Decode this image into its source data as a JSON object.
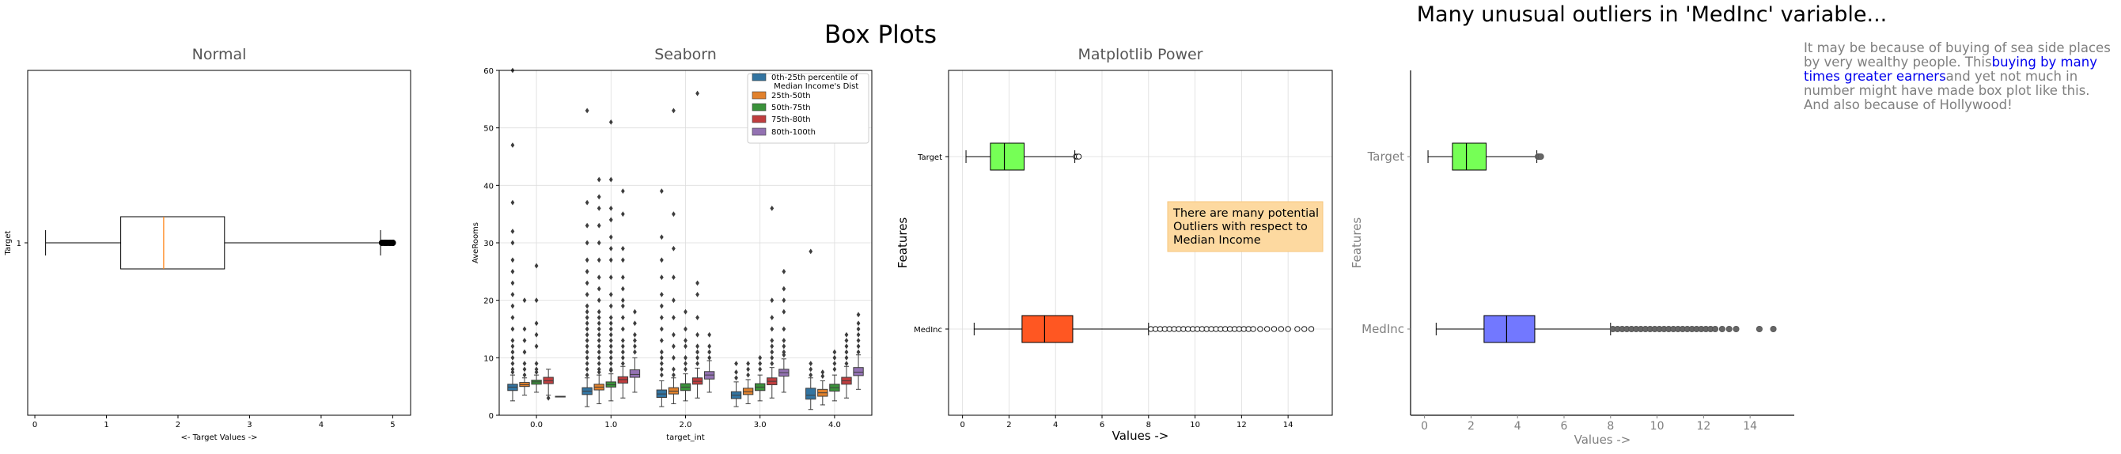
{
  "figure": {
    "suptitle": "Box Plots",
    "right_title": "Many unusual outliers in 'MedInc' variable...",
    "note": {
      "before": "It may be because of buying of sea side places by very wealthy people. This",
      "highlight": "buying by many times greater earners",
      "after": "and yet not much in number might have made box plot like this. And also because of Hollywood!"
    }
  },
  "chart_data": [
    {
      "type": "box",
      "title": "Normal",
      "orientation": "horizontal",
      "xlabel": "<-  Target Values  ->",
      "ylabel": "Target",
      "categories": [
        "1"
      ],
      "xlim": [
        -0.1,
        5.25
      ],
      "xticks": [
        0,
        1,
        2,
        3,
        4,
        5
      ],
      "boxes": [
        {
          "label": "1",
          "whislo": 0.15,
          "q1": 1.2,
          "med": 1.8,
          "q3": 2.65,
          "whishi": 4.83,
          "fliers": [
            4.85,
            4.88,
            4.9,
            4.92,
            4.95,
            4.97,
            5.0,
            5.0,
            5.0
          ]
        }
      ],
      "colors": {
        "box": "#000000",
        "median": "#ff7f0e",
        "face": "#ffffff"
      }
    },
    {
      "type": "box",
      "title": "Seaborn",
      "orientation": "vertical",
      "xlabel": "target_int",
      "ylabel": "AveRooms",
      "categories": [
        "0.0",
        "1.0",
        "2.0",
        "3.0",
        "4.0"
      ],
      "ylim": [
        0,
        60
      ],
      "yticks": [
        0,
        10,
        20,
        30,
        40,
        50,
        60
      ],
      "grid": true,
      "legend": {
        "position": "top-right",
        "entries": [
          "0th-25th percentile of\nMedian Income's Dist",
          "25th-50th",
          "50th-75th",
          "75th-80th",
          "80th-100th"
        ]
      },
      "series_colors": [
        "#3274a1",
        "#e1812c",
        "#3a923a",
        "#c03d3e",
        "#9372b2"
      ],
      "groups": [
        {
          "category": "0.0",
          "boxes": [
            {
              "whislo": 2.5,
              "q1": 4.3,
              "med": 4.9,
              "q3": 5.4,
              "whishi": 7.0,
              "fliers": [
                7.5,
                8,
                9,
                10,
                11,
                12,
                13,
                15,
                17,
                19,
                21,
                23,
                25,
                27,
                30,
                32,
                37,
                47,
                60
              ]
            },
            {
              "whislo": 3.5,
              "q1": 5.0,
              "med": 5.3,
              "q3": 5.7,
              "whishi": 6.5,
              "fliers": [
                7,
                8,
                9,
                11,
                13,
                15,
                20
              ]
            },
            {
              "whislo": 4.0,
              "q1": 5.4,
              "med": 5.8,
              "q3": 6.1,
              "whishi": 7.0,
              "fliers": [
                7.5,
                8,
                9,
                12,
                14,
                16,
                20,
                26
              ]
            },
            {
              "whislo": 3.5,
              "q1": 5.5,
              "med": 6.0,
              "q3": 6.6,
              "whishi": 8.0,
              "fliers": [
                3.0
              ]
            },
            {
              "whislo": 3.3,
              "q1": 3.3,
              "med": 3.3,
              "q3": 3.3,
              "whishi": 3.3,
              "fliers": []
            }
          ]
        },
        {
          "category": "1.0",
          "boxes": [
            {
              "whislo": 1.5,
              "q1": 3.6,
              "med": 4.2,
              "q3": 4.8,
              "whishi": 6.5,
              "fliers": [
                7,
                8,
                9,
                10,
                11,
                12,
                13,
                14,
                15,
                16,
                17,
                18,
                19,
                21,
                23,
                25,
                27,
                30,
                33,
                37,
                53
              ]
            },
            {
              "whislo": 2.0,
              "q1": 4.4,
              "med": 4.9,
              "q3": 5.4,
              "whishi": 7.0,
              "fliers": [
                7.5,
                8,
                9,
                10,
                11,
                12,
                13,
                14,
                15,
                16,
                17,
                18,
                20,
                22,
                24,
                27,
                30,
                33,
                36,
                38,
                41
              ]
            },
            {
              "whislo": 2.5,
              "q1": 4.9,
              "med": 5.3,
              "q3": 5.8,
              "whishi": 7.2,
              "fliers": [
                7.8,
                8,
                9,
                10,
                11,
                12,
                13,
                14,
                15,
                16,
                17,
                19,
                21,
                24,
                27,
                29,
                31,
                34,
                36,
                41,
                51
              ]
            },
            {
              "whislo": 3.0,
              "q1": 5.6,
              "med": 6.2,
              "q3": 6.7,
              "whishi": 8.5,
              "fliers": [
                9,
                10,
                11,
                12,
                13,
                15,
                17,
                19,
                20,
                22,
                24,
                27,
                29,
                35,
                39
              ]
            },
            {
              "whislo": 4.0,
              "q1": 6.6,
              "med": 7.1,
              "q3": 7.9,
              "whishi": 10.0,
              "fliers": [
                11,
                12,
                13,
                14,
                16,
                18
              ]
            }
          ]
        },
        {
          "category": "2.0",
          "boxes": [
            {
              "whislo": 1.5,
              "q1": 3.1,
              "med": 3.7,
              "q3": 4.4,
              "whishi": 6.0,
              "fliers": [
                7,
                8,
                9,
                10,
                11,
                13,
                15,
                17,
                19,
                21,
                24,
                27,
                31,
                39
              ]
            },
            {
              "whislo": 2.0,
              "q1": 3.7,
              "med": 4.2,
              "q3": 4.8,
              "whishi": 6.5,
              "fliers": [
                7,
                8,
                10,
                12,
                14,
                17,
                20,
                24,
                29,
                35,
                53
              ]
            },
            {
              "whislo": 2.5,
              "q1": 4.3,
              "med": 4.9,
              "q3": 5.5,
              "whishi": 7.2,
              "fliers": [
                8,
                9,
                10,
                12,
                13,
                15,
                18
              ]
            },
            {
              "whislo": 3.0,
              "q1": 5.4,
              "med": 5.9,
              "q3": 6.5,
              "whishi": 8.2,
              "fliers": [
                9,
                10,
                11,
                12,
                14,
                17,
                21,
                23,
                56
              ]
            },
            {
              "whislo": 4.0,
              "q1": 6.3,
              "med": 7.0,
              "q3": 7.6,
              "whishi": 9.5,
              "fliers": [
                10,
                11,
                12,
                14
              ]
            }
          ]
        },
        {
          "category": "3.0",
          "boxes": [
            {
              "whislo": 1.5,
              "q1": 2.9,
              "med": 3.5,
              "q3": 4.1,
              "whishi": 5.8,
              "fliers": [
                6.5,
                7.5,
                9
              ]
            },
            {
              "whislo": 2.0,
              "q1": 3.6,
              "med": 4.1,
              "q3": 4.7,
              "whishi": 6.2,
              "fliers": [
                7,
                8,
                9
              ]
            },
            {
              "whislo": 2.5,
              "q1": 4.3,
              "med": 4.9,
              "q3": 5.5,
              "whishi": 7.0,
              "fliers": [
                8,
                9,
                10
              ]
            },
            {
              "whislo": 3.0,
              "q1": 5.3,
              "med": 5.9,
              "q3": 6.5,
              "whishi": 8.3,
              "fliers": [
                9,
                10,
                11,
                12,
                13,
                15,
                17,
                20,
                36
              ]
            },
            {
              "whislo": 4.0,
              "q1": 6.8,
              "med": 7.4,
              "q3": 8.0,
              "whishi": 9.8,
              "fliers": [
                10.5,
                11,
                12,
                13,
                15,
                18,
                20,
                22,
                25
              ]
            }
          ]
        },
        {
          "category": "4.0",
          "boxes": [
            {
              "whislo": 1.0,
              "q1": 2.8,
              "med": 3.5,
              "q3": 4.7,
              "whishi": 6.5,
              "fliers": [
                7,
                8,
                9,
                28.5
              ]
            },
            {
              "whislo": 1.8,
              "q1": 3.3,
              "med": 3.9,
              "q3": 4.5,
              "whishi": 6.0,
              "fliers": [
                6.8,
                7.5
              ]
            },
            {
              "whislo": 2.5,
              "q1": 4.2,
              "med": 4.8,
              "q3": 5.4,
              "whishi": 7.0,
              "fliers": [
                8,
                9,
                10,
                11
              ]
            },
            {
              "whislo": 3.0,
              "q1": 5.4,
              "med": 6.0,
              "q3": 6.6,
              "whishi": 8.5,
              "fliers": [
                9,
                10,
                11,
                12,
                13,
                14
              ]
            },
            {
              "whislo": 4.5,
              "q1": 6.9,
              "med": 7.5,
              "q3": 8.3,
              "whishi": 10.5,
              "fliers": [
                11,
                12,
                13,
                14,
                15,
                16,
                17.5
              ]
            }
          ]
        }
      ]
    },
    {
      "type": "box",
      "title": "Matplotlib Power",
      "orientation": "horizontal",
      "xlabel": "Values  ->",
      "ylabel": "Features",
      "categories": [
        "MedInc",
        "Target"
      ],
      "xlim": [
        -0.6,
        15.9
      ],
      "xticks": [
        0,
        2,
        4,
        6,
        8,
        10,
        12,
        14
      ],
      "grid": true,
      "annotation": "There are many potential\nOutliers with respect to\nMedian Income",
      "boxes": [
        {
          "label": "MedInc",
          "whislo": 0.5,
          "q1": 2.56,
          "med": 3.53,
          "q3": 4.74,
          "whishi": 8.0,
          "color": "#ff5722",
          "fliers": [
            8.1,
            8.3,
            8.5,
            8.7,
            8.9,
            9.1,
            9.3,
            9.5,
            9.7,
            9.9,
            10.1,
            10.3,
            10.5,
            10.7,
            10.9,
            11.1,
            11.3,
            11.5,
            11.7,
            11.9,
            12.1,
            12.3,
            12.5,
            12.8,
            13.1,
            13.4,
            13.7,
            14.0,
            14.4,
            14.7,
            15.0
          ]
        },
        {
          "label": "Target",
          "whislo": 0.15,
          "q1": 1.2,
          "med": 1.8,
          "q3": 2.65,
          "whishi": 4.83,
          "color": "#76ff56",
          "fliers": [
            4.88,
            4.93,
            5.0
          ]
        }
      ]
    },
    {
      "type": "box",
      "title": "",
      "orientation": "horizontal",
      "xlabel": "Values  ->",
      "ylabel": "Features",
      "categories": [
        "MedInc",
        "Target"
      ],
      "xlim": [
        -0.6,
        15.9
      ],
      "xticks": [
        0,
        2,
        4,
        6,
        8,
        10,
        12,
        14
      ],
      "grid": false,
      "boxes": [
        {
          "label": "MedInc",
          "whislo": 0.5,
          "q1": 2.56,
          "med": 3.53,
          "q3": 4.74,
          "whishi": 8.0,
          "color": "#7278ff",
          "fliers": [
            8.1,
            8.3,
            8.5,
            8.7,
            8.9,
            9.1,
            9.3,
            9.5,
            9.7,
            9.9,
            10.1,
            10.3,
            10.5,
            10.7,
            10.9,
            11.1,
            11.3,
            11.5,
            11.7,
            11.9,
            12.1,
            12.3,
            12.5,
            12.8,
            13.1,
            13.4,
            14.4,
            15.0
          ]
        },
        {
          "label": "Target",
          "whislo": 0.15,
          "q1": 1.2,
          "med": 1.8,
          "q3": 2.65,
          "whishi": 4.83,
          "color": "#76ff56",
          "fliers": [
            4.88,
            4.93,
            5.0
          ]
        }
      ]
    }
  ]
}
